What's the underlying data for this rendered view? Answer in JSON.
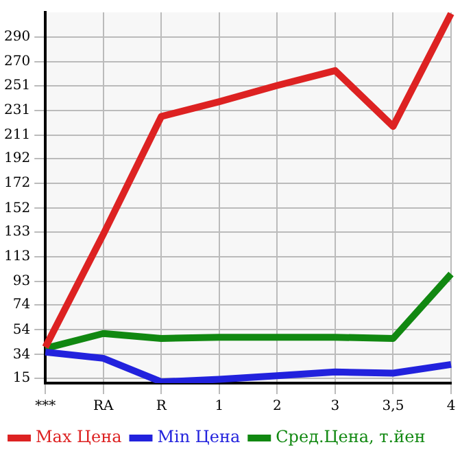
{
  "chart_data": {
    "type": "line",
    "categories": [
      "***",
      "RA",
      "R",
      "1",
      "2",
      "3",
      "3,5",
      "4"
    ],
    "series": [
      {
        "name": "Max Цена",
        "color": "#dd2222",
        "values": [
          40,
          131,
          226,
          238,
          251,
          263,
          218,
          309
        ]
      },
      {
        "name": "Min Цена",
        "color": "#2222dd",
        "values": [
          36,
          31,
          12,
          14,
          17,
          20,
          19,
          26
        ]
      },
      {
        "name": "Сред.Цена, т.йен",
        "color": "#118811",
        "values": [
          39,
          51,
          47,
          48,
          48,
          48,
          47,
          99
        ]
      }
    ],
    "ylim": [
      11,
      310
    ],
    "yticks": [
      15,
      34,
      54,
      74,
      93,
      113,
      133,
      152,
      172,
      192,
      211,
      231,
      251,
      270,
      290
    ],
    "grid": true,
    "legend": "bottom",
    "marker": "none",
    "line_style": "solid"
  }
}
